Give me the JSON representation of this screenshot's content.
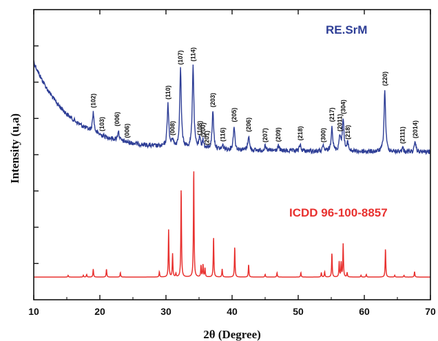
{
  "chart_data": {
    "type": "line",
    "xlabel": "2θ (Degree)",
    "ylabel": "Intensity (u,a)",
    "xlim": [
      10,
      70
    ],
    "x_ticks": [
      10,
      20,
      30,
      40,
      50,
      60,
      70
    ],
    "x_tick_labels": [
      "10",
      "20",
      "30",
      "40",
      "50",
      "60",
      "70"
    ],
    "y_tick_values_shown": false,
    "grid": false,
    "colors": {
      "experimental": "#2E3E96",
      "reference": "#E8312F",
      "axis": "#111111"
    },
    "series": [
      {
        "name": "RE.SrM",
        "role": "experimental",
        "peaks": [
          {
            "x": 19.0,
            "h": 0.25
          },
          {
            "x": 22.8,
            "h": 0.12
          },
          {
            "x": 30.3,
            "h": 0.55
          },
          {
            "x": 31.0,
            "h": 0.1
          },
          {
            "x": 32.2,
            "h": 1.0
          },
          {
            "x": 34.1,
            "h": 1.05
          },
          {
            "x": 35.1,
            "h": 0.12
          },
          {
            "x": 35.6,
            "h": 0.1
          },
          {
            "x": 37.1,
            "h": 0.48
          },
          {
            "x": 38.6,
            "h": 0.05
          },
          {
            "x": 40.3,
            "h": 0.3
          },
          {
            "x": 42.5,
            "h": 0.18
          },
          {
            "x": 45.0,
            "h": 0.05
          },
          {
            "x": 47.0,
            "h": 0.06
          },
          {
            "x": 50.3,
            "h": 0.08
          },
          {
            "x": 53.8,
            "h": 0.06
          },
          {
            "x": 55.1,
            "h": 0.32
          },
          {
            "x": 56.3,
            "h": 0.2
          },
          {
            "x": 56.8,
            "h": 0.42
          },
          {
            "x": 57.5,
            "h": 0.1
          },
          {
            "x": 63.1,
            "h": 0.78
          },
          {
            "x": 65.8,
            "h": 0.05
          },
          {
            "x": 67.7,
            "h": 0.12
          }
        ],
        "peak_labels": [
          {
            "x": 19.0,
            "label": "(102)"
          },
          {
            "x": 20.3,
            "label": "(103)"
          },
          {
            "x": 22.6,
            "label": "(006)"
          },
          {
            "x": 24.1,
            "label": "(006)"
          },
          {
            "x": 30.3,
            "label": "(110)"
          },
          {
            "x": 31.0,
            "label": "(008)"
          },
          {
            "x": 32.2,
            "label": "(107)"
          },
          {
            "x": 34.1,
            "label": "(114)"
          },
          {
            "x": 35.1,
            "label": "(108)"
          },
          {
            "x": 35.6,
            "label": "(200)"
          },
          {
            "x": 36.2,
            "label": "(201)"
          },
          {
            "x": 37.1,
            "label": "(203)"
          },
          {
            "x": 38.6,
            "label": "(116)"
          },
          {
            "x": 40.3,
            "label": "(205)"
          },
          {
            "x": 42.5,
            "label": "(206)"
          },
          {
            "x": 45.0,
            "label": "(207)"
          },
          {
            "x": 47.0,
            "label": "(209)"
          },
          {
            "x": 50.3,
            "label": "(218)"
          },
          {
            "x": 53.8,
            "label": "(300)"
          },
          {
            "x": 55.1,
            "label": "(217)"
          },
          {
            "x": 56.3,
            "label": "(2011)"
          },
          {
            "x": 56.8,
            "label": "(304)"
          },
          {
            "x": 57.5,
            "label": "(218)"
          },
          {
            "x": 63.1,
            "label": "(220)"
          },
          {
            "x": 65.8,
            "label": "(2111)"
          },
          {
            "x": 67.7,
            "label": "(2014)"
          }
        ]
      },
      {
        "name": "ICDD 96-100-8857",
        "role": "reference",
        "peaks": [
          {
            "x": 15.2,
            "h": 0.02
          },
          {
            "x": 17.5,
            "h": 0.02
          },
          {
            "x": 18.0,
            "h": 0.03
          },
          {
            "x": 19.0,
            "h": 0.09
          },
          {
            "x": 21.0,
            "h": 0.09
          },
          {
            "x": 23.1,
            "h": 0.05
          },
          {
            "x": 29.0,
            "h": 0.06
          },
          {
            "x": 30.4,
            "h": 0.53
          },
          {
            "x": 31.0,
            "h": 0.26
          },
          {
            "x": 31.5,
            "h": 0.04
          },
          {
            "x": 32.3,
            "h": 1.0
          },
          {
            "x": 34.2,
            "h": 1.22
          },
          {
            "x": 35.3,
            "h": 0.13
          },
          {
            "x": 35.6,
            "h": 0.14
          },
          {
            "x": 35.9,
            "h": 0.1
          },
          {
            "x": 37.2,
            "h": 0.45
          },
          {
            "x": 38.5,
            "h": 0.09
          },
          {
            "x": 40.4,
            "h": 0.34
          },
          {
            "x": 42.5,
            "h": 0.14
          },
          {
            "x": 45.0,
            "h": 0.03
          },
          {
            "x": 46.8,
            "h": 0.05
          },
          {
            "x": 50.4,
            "h": 0.05
          },
          {
            "x": 53.5,
            "h": 0.05
          },
          {
            "x": 54.0,
            "h": 0.06
          },
          {
            "x": 55.1,
            "h": 0.27
          },
          {
            "x": 56.2,
            "h": 0.17
          },
          {
            "x": 56.5,
            "h": 0.16
          },
          {
            "x": 56.8,
            "h": 0.37
          },
          {
            "x": 57.4,
            "h": 0.05
          },
          {
            "x": 59.5,
            "h": 0.02
          },
          {
            "x": 60.3,
            "h": 0.03
          },
          {
            "x": 63.2,
            "h": 0.32
          },
          {
            "x": 64.6,
            "h": 0.02
          },
          {
            "x": 66.0,
            "h": 0.02
          },
          {
            "x": 67.6,
            "h": 0.06
          }
        ]
      }
    ]
  }
}
